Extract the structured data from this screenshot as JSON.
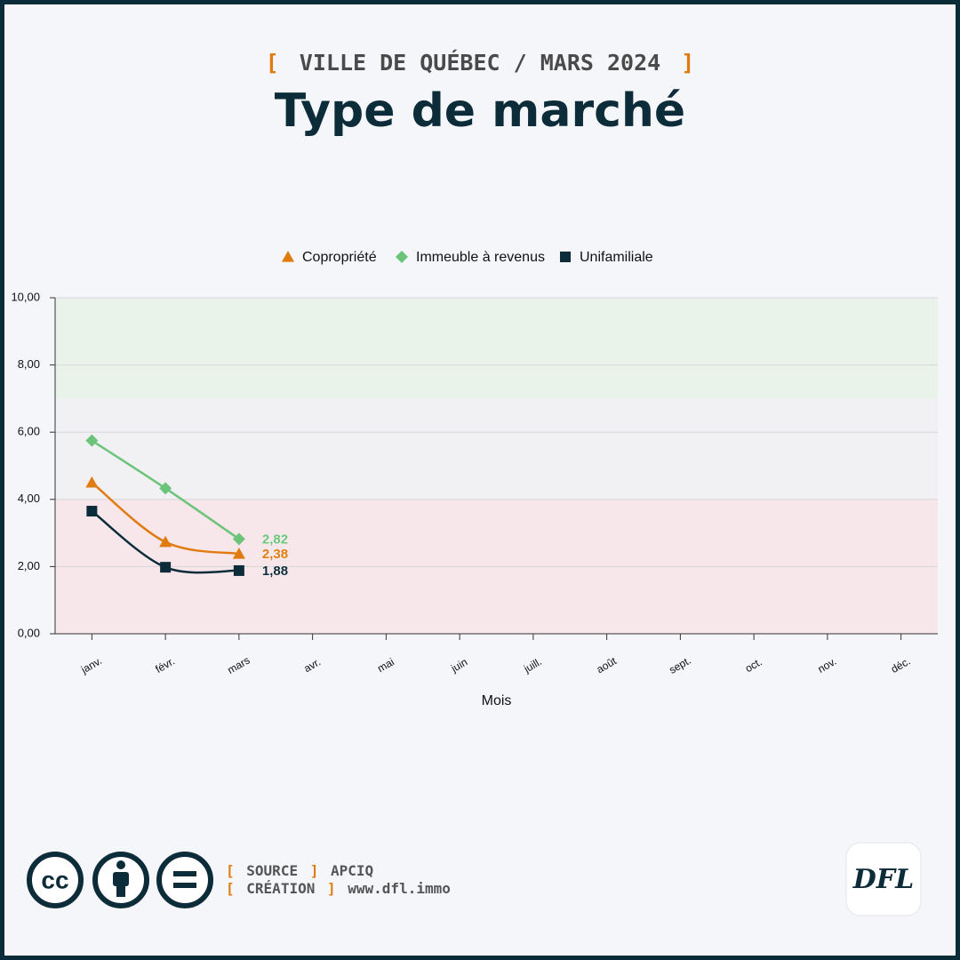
{
  "brackets": [
    "[",
    "]"
  ],
  "header": {
    "subtitle": "VILLE DE QUÉBEC / MARS 2024",
    "title": "Type de marché"
  },
  "chart_data": {
    "type": "line",
    "categories": [
      "janv.",
      "févr.",
      "mars",
      "avr.",
      "mai",
      "juin",
      "juill.",
      "août",
      "sept.",
      "oct.",
      "nov.",
      "déc."
    ],
    "x_label": "Mois",
    "ylim": [
      0,
      10
    ],
    "yticks": [
      {
        "value": 0,
        "label": "0,00"
      },
      {
        "value": 2,
        "label": "2,00"
      },
      {
        "value": 4,
        "label": "4,00"
      },
      {
        "value": 6,
        "label": "6,00"
      },
      {
        "value": 8,
        "label": "8,00"
      },
      {
        "value": 10,
        "label": "10,00"
      }
    ],
    "grid": true,
    "legend": "top",
    "bands": [
      {
        "from": 0,
        "to": 4,
        "color": "#f7e6ea"
      },
      {
        "from": 4,
        "to": 7,
        "color": "#f1f1f4"
      },
      {
        "from": 7,
        "to": 10,
        "color": "#e9f3ea"
      }
    ],
    "series": [
      {
        "name": "Copropriété",
        "color": "#e07b0f",
        "marker": "triangle",
        "values": [
          4.5,
          2.73,
          2.38,
          null,
          null,
          null,
          null,
          null,
          null,
          null,
          null,
          null
        ],
        "value_labels": [
          null,
          null,
          "2,38",
          null,
          null,
          null,
          null,
          null,
          null,
          null,
          null,
          null
        ]
      },
      {
        "name": "Immeuble à revenus",
        "color": "#6cc47a",
        "marker": "diamond",
        "values": [
          5.75,
          4.33,
          2.82,
          null,
          null,
          null,
          null,
          null,
          null,
          null,
          null,
          null
        ],
        "value_labels": [
          null,
          null,
          "2,82",
          null,
          null,
          null,
          null,
          null,
          null,
          null,
          null,
          null
        ]
      },
      {
        "name": "Unifamiliale",
        "color": "#0d2c3a",
        "marker": "square",
        "values": [
          3.65,
          1.98,
          1.88,
          null,
          null,
          null,
          null,
          null,
          null,
          null,
          null,
          null
        ],
        "value_labels": [
          null,
          null,
          "1,88",
          null,
          null,
          null,
          null,
          null,
          null,
          null,
          null,
          null
        ]
      }
    ]
  },
  "footer": {
    "source_label": "SOURCE",
    "source": "APCIQ",
    "credit_label": "CRÉATION",
    "credit": "www.dfl.immo",
    "license": "cc",
    "logo": "DFL"
  }
}
